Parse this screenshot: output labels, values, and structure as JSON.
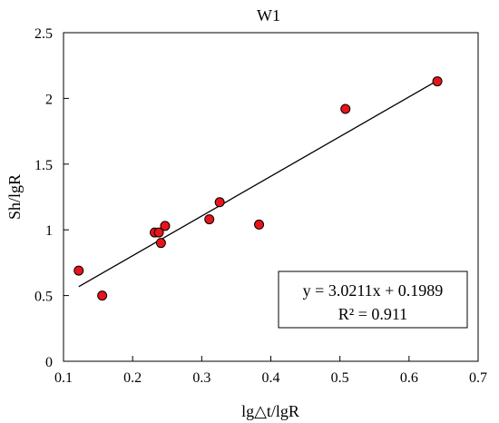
{
  "chart_data": {
    "type": "scatter",
    "title": "W1",
    "xlabel": "lg△t/lgR",
    "ylabel": "Sh/lgR",
    "xlim": [
      0.1,
      0.7
    ],
    "ylim": [
      0,
      2.5
    ],
    "x_ticks": [
      "0.1",
      "0.2",
      "0.3",
      "0.4",
      "0.5",
      "0.6",
      "0.7"
    ],
    "y_ticks": [
      "0",
      "0.5",
      "1",
      "1.5",
      "2",
      "2.5"
    ],
    "grid": false,
    "legend": "none",
    "marker_color": "#e8141b",
    "series": [
      {
        "points": [
          {
            "x": 0.122,
            "y": 0.69
          },
          {
            "x": 0.156,
            "y": 0.5
          },
          {
            "x": 0.232,
            "y": 0.98
          },
          {
            "x": 0.238,
            "y": 0.98
          },
          {
            "x": 0.241,
            "y": 0.9
          },
          {
            "x": 0.247,
            "y": 1.03
          },
          {
            "x": 0.311,
            "y": 1.08
          },
          {
            "x": 0.326,
            "y": 1.21
          },
          {
            "x": 0.383,
            "y": 1.04
          },
          {
            "x": 0.508,
            "y": 1.92
          },
          {
            "x": 0.641,
            "y": 2.13
          }
        ]
      }
    ],
    "trendline": {
      "slope": 3.0211,
      "intercept": 0.1989,
      "x_range": [
        0.122,
        0.641
      ]
    },
    "annotation": {
      "equation": "y = 3.0211x + 0.1989",
      "r2": "R² = 0.911",
      "position": "bottom-right"
    }
  }
}
